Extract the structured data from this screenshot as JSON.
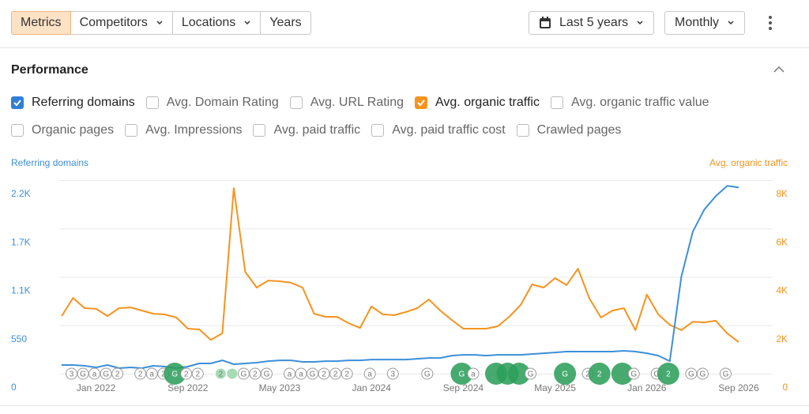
{
  "toolbar": {
    "tabs": [
      {
        "label": "Metrics",
        "active": true
      },
      {
        "label": "Competitors",
        "dropdown": true
      },
      {
        "label": "Locations",
        "dropdown": true
      },
      {
        "label": "Years"
      }
    ],
    "period": "Last 5 years",
    "interval": "Monthly"
  },
  "section_title": "Performance",
  "filters": [
    [
      {
        "label": "Referring domains",
        "checked": true,
        "color": "#2f7fd6"
      },
      {
        "label": "Avg. Domain Rating"
      },
      {
        "label": "Avg. URL Rating"
      },
      {
        "label": "Avg. organic traffic",
        "checked": true,
        "color": "#f7931e"
      },
      {
        "label": "Avg. organic traffic value"
      }
    ],
    [
      {
        "label": "Organic pages"
      },
      {
        "label": "Avg. Impressions"
      },
      {
        "label": "Avg. paid traffic"
      },
      {
        "label": "Avg. paid traffic cost"
      },
      {
        "label": "Crawled pages"
      }
    ]
  ],
  "chart_data": {
    "type": "line",
    "y_label": "Referring domains",
    "y2_label": "Avg. organic traffic",
    "categories": [
      null,
      null,
      null,
      "Jan 2022",
      null,
      null,
      null,
      null,
      null,
      null,
      null,
      "Sep 2022",
      null,
      null,
      null,
      null,
      null,
      null,
      null,
      "May 2023",
      null,
      null,
      null,
      null,
      null,
      null,
      null,
      "Jan 2024",
      null,
      null,
      null,
      null,
      null,
      null,
      null,
      "Sep 2024",
      null,
      null,
      null,
      null,
      null,
      null,
      null,
      "May 2025",
      null,
      null,
      null,
      null,
      null,
      null,
      null,
      "Jan 2026",
      null,
      null,
      null,
      null,
      null,
      null,
      null,
      "Sep 2026"
    ],
    "series": [
      {
        "name": "Referring domains",
        "color": "#3d8fd9",
        "values": [
          99,
          99,
          90,
          72,
          99,
          63,
          72,
          63,
          90,
          81,
          63,
          81,
          117,
          117,
          152,
          108,
          117,
          126,
          143,
          152,
          152,
          135,
          135,
          143,
          143,
          152,
          152,
          161,
          161,
          161,
          161,
          170,
          179,
          179,
          206,
          215,
          215,
          206,
          215,
          215,
          215,
          224,
          233,
          242,
          251,
          251,
          251,
          251,
          251,
          260,
          251,
          233,
          206,
          143,
          1103,
          1614,
          1865,
          2018,
          2135,
          2117
        ]
      },
      {
        "name": "Avg. organic traffic",
        "color": "#f7931e",
        "axis": "y2",
        "values": [
          2380,
          3130,
          2710,
          2680,
          2380,
          2710,
          2740,
          2610,
          2480,
          2450,
          2320,
          1860,
          1830,
          1400,
          1670,
          7670,
          4210,
          3560,
          3850,
          3820,
          3760,
          3560,
          2480,
          2350,
          2350,
          2090,
          1890,
          2780,
          2450,
          2420,
          2550,
          2710,
          3070,
          2610,
          2220,
          1860,
          1860,
          1860,
          1960,
          2350,
          2840,
          3690,
          3560,
          3950,
          3660,
          4340,
          3100,
          2320,
          2610,
          2710,
          1800,
          3270,
          2450,
          2020,
          1800,
          2150,
          2120,
          2190,
          1670,
          1310
        ]
      }
    ],
    "ylim": [
      0,
      2200
    ],
    "yticks": [
      0,
      550,
      {
        "value": 1100,
        "label": "1.1K"
      },
      {
        "value": 1650,
        "label": "1.7K"
      },
      {
        "value": 2200,
        "label": "2.2K"
      }
    ],
    "y2lim": [
      0,
      8000
    ],
    "y2ticks": [
      0,
      {
        "value": 2000,
        "label": "2K"
      },
      {
        "value": 4000,
        "label": "4K"
      },
      {
        "value": 6000,
        "label": "6K"
      },
      {
        "value": 8000,
        "label": "8K"
      }
    ],
    "grid": true,
    "events": [
      null,
      {
        "label": "3",
        "style": "outline"
      },
      {
        "label": "G",
        "style": "outline"
      },
      {
        "label": "a",
        "style": "outline"
      },
      {
        "label": "G",
        "style": "outline"
      },
      {
        "label": "2",
        "style": "outline"
      },
      null,
      {
        "label": "2",
        "style": "outline"
      },
      {
        "label": "a",
        "style": "outline"
      },
      {
        "label": "2",
        "style": "outline"
      },
      {
        "label": "G",
        "style": "green"
      },
      {
        "label": "2",
        "style": "outline"
      },
      {
        "label": "2",
        "style": "outline"
      },
      null,
      {
        "label": "2",
        "style": "light"
      },
      {
        "style": "light"
      },
      {
        "label": "G",
        "style": "outline"
      },
      {
        "label": "2",
        "style": "outline"
      },
      {
        "label": "G",
        "style": "outline"
      },
      null,
      {
        "label": "a",
        "style": "outline"
      },
      {
        "label": "a",
        "style": "outline"
      },
      {
        "label": "G",
        "style": "outline"
      },
      {
        "label": "2",
        "style": "outline"
      },
      {
        "label": "2",
        "style": "outline"
      },
      {
        "label": "2",
        "style": "outline"
      },
      null,
      {
        "label": "a",
        "style": "outline"
      },
      null,
      {
        "label": "3",
        "style": "outline"
      },
      null,
      null,
      {
        "label": "G",
        "style": "outline"
      },
      null,
      null,
      {
        "label": "G",
        "style": "green"
      },
      {
        "label": "a",
        "style": "outline"
      },
      null,
      {
        "style": "green"
      },
      {
        "style": "green"
      },
      {
        "style": "green"
      },
      {
        "label": "G",
        "style": "outline"
      },
      null,
      null,
      {
        "label": "G",
        "style": "green"
      },
      null,
      {
        "label": "2",
        "style": "outline"
      },
      {
        "label": "2",
        "style": "green"
      },
      null,
      {
        "style": "green"
      },
      {
        "label": "G",
        "style": "outline"
      },
      null,
      {
        "label": "G",
        "style": "outline"
      },
      {
        "label": "2",
        "style": "green"
      },
      null,
      {
        "label": "G",
        "style": "outline"
      },
      {
        "label": "G",
        "style": "outline"
      },
      null,
      {
        "label": "G",
        "style": "outline"
      },
      null
    ]
  }
}
